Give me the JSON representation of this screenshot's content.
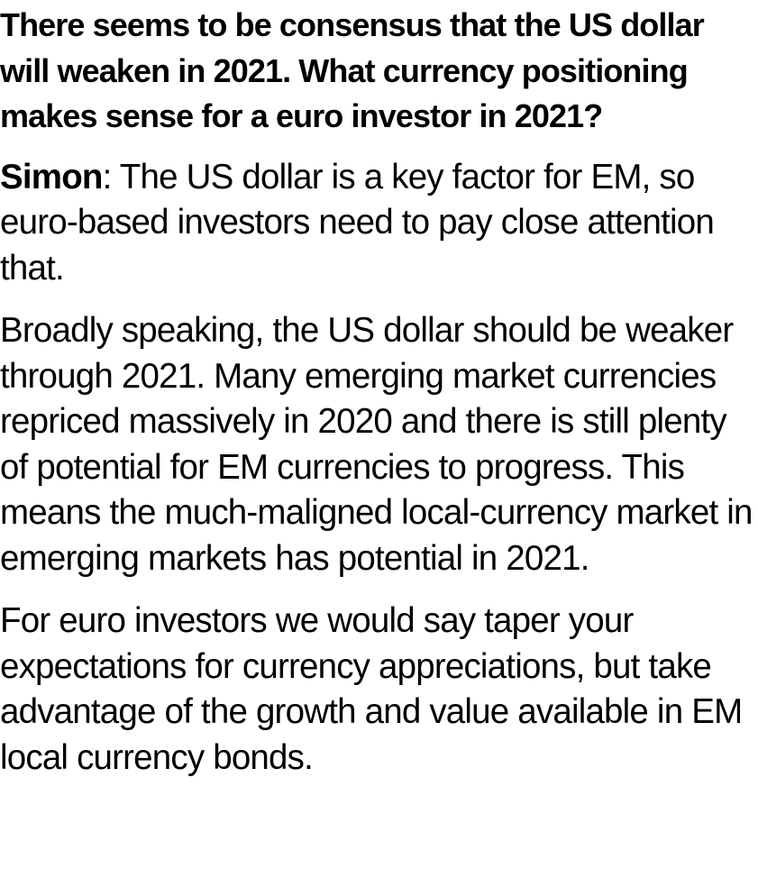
{
  "article": {
    "question": "There seems to be consensus that the US dollar will weaken in 2021. What currency positioning makes sense for a euro investor in 2021?",
    "answer_speaker": "Simon",
    "answer_intro": ": The US dollar is a key factor for EM, so euro-based investors need to pay close attention that.",
    "paragraph_2": "Broadly speaking, the US dollar should be weaker through 2021. Many emerging market currencies repriced massively in 2020 and there is still plenty of potential for EM currencies to progress. This means the much-maligned local-currency market in emerging markets has potential in 2021.",
    "paragraph_3": "For euro investors we would say taper your expectations for currency appreciations, but take advantage of the growth and value available in EM local currency bonds."
  }
}
